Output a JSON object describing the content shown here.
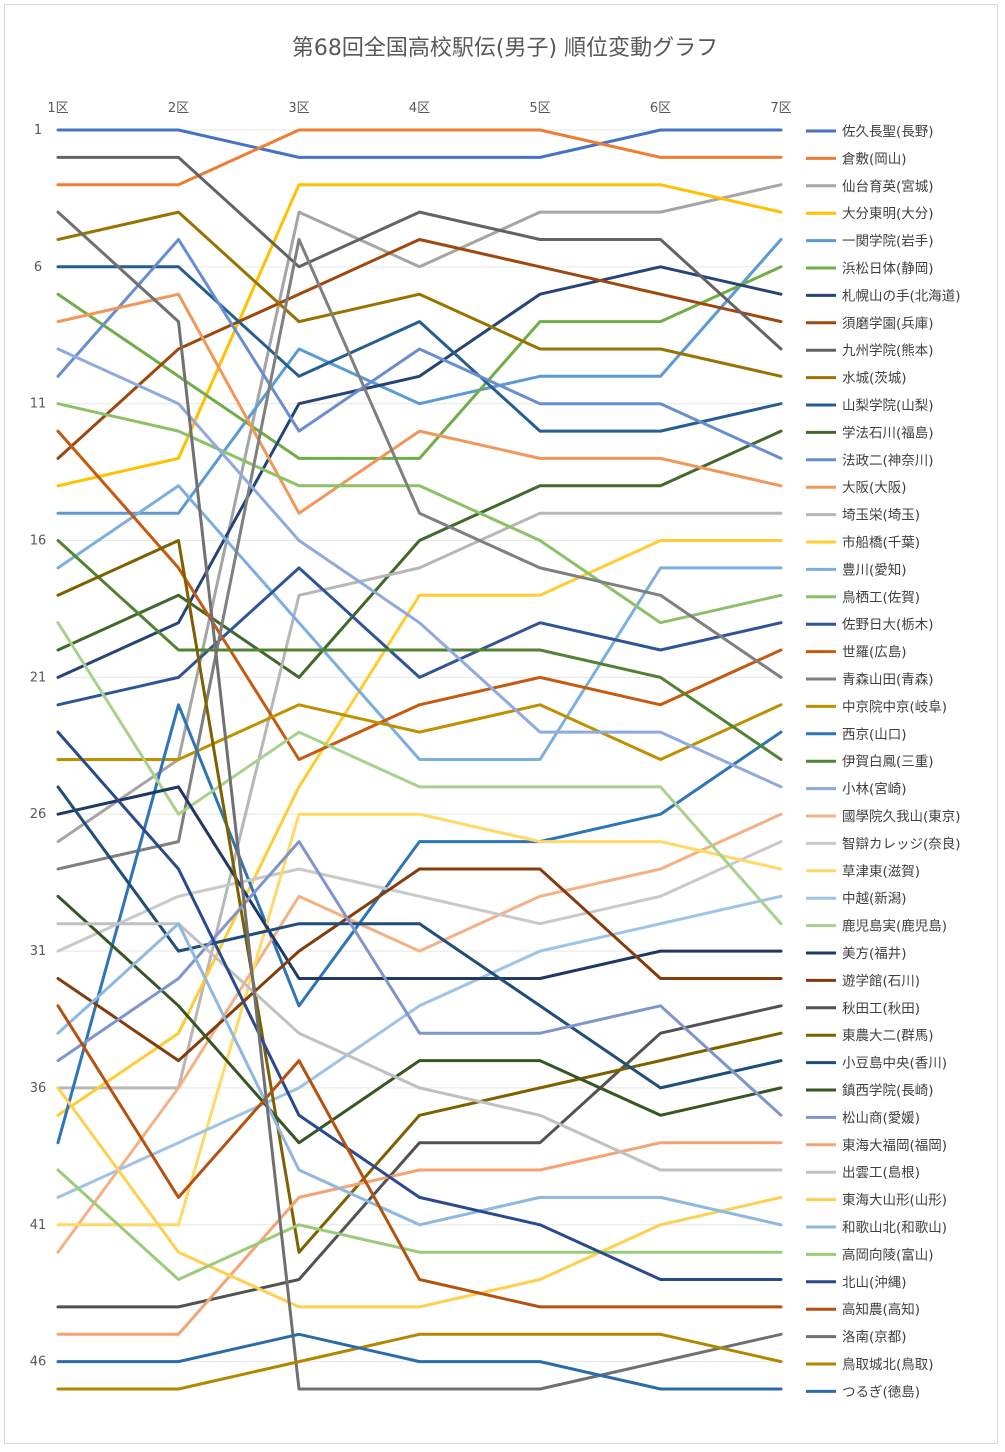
{
  "chart_data": {
    "type": "line",
    "title": "第68回全国高校駅伝(男子) 順位変動グラフ",
    "categories": [
      "1区",
      "2区",
      "3区",
      "4区",
      "5区",
      "6区",
      "7区"
    ],
    "y_ticks": [
      1,
      6,
      11,
      16,
      21,
      26,
      31,
      36,
      41,
      46
    ],
    "ylim": [
      1,
      47
    ],
    "y_reversed": true,
    "grid": true,
    "legend_position": "right",
    "series": [
      {
        "name": "佐久長聖(長野)",
        "color": "#4472C4",
        "values": [
          1,
          1,
          2,
          2,
          2,
          1,
          1
        ]
      },
      {
        "name": "倉敷(岡山)",
        "color": "#ED7D31",
        "values": [
          3,
          3,
          1,
          1,
          1,
          2,
          2
        ]
      },
      {
        "name": "仙台育英(宮城)",
        "color": "#A5A5A5",
        "values": [
          27,
          24,
          4,
          6,
          4,
          4,
          3
        ]
      },
      {
        "name": "大分東明(大分)",
        "color": "#FFC000",
        "values": [
          14,
          13,
          3,
          3,
          3,
          3,
          4
        ]
      },
      {
        "name": "一関学院(岩手)",
        "color": "#5B9BD5",
        "values": [
          15,
          15,
          9,
          11,
          10,
          10,
          5
        ]
      },
      {
        "name": "浜松日体(静岡)",
        "color": "#70AD47",
        "values": [
          7,
          10,
          13,
          13,
          8,
          8,
          6
        ]
      },
      {
        "name": "札幌山の手(北海道)",
        "color": "#264478",
        "values": [
          21,
          19,
          11,
          10,
          7,
          6,
          7
        ]
      },
      {
        "name": "須磨学園(兵庫)",
        "color": "#9E480E",
        "values": [
          13,
          9,
          7,
          5,
          6,
          7,
          8
        ]
      },
      {
        "name": "九州学院(熊本)",
        "color": "#636363",
        "values": [
          2,
          2,
          6,
          4,
          5,
          5,
          9
        ]
      },
      {
        "name": "水城(茨城)",
        "color": "#997300",
        "values": [
          5,
          4,
          8,
          7,
          9,
          9,
          10
        ]
      },
      {
        "name": "山梨学院(山梨)",
        "color": "#255E91",
        "values": [
          6,
          6,
          10,
          8,
          12,
          12,
          11
        ]
      },
      {
        "name": "学法石川(福島)",
        "color": "#43682B",
        "values": [
          20,
          18,
          21,
          16,
          14,
          14,
          12
        ]
      },
      {
        "name": "法政二(神奈川)",
        "color": "#698ED0",
        "values": [
          10,
          5,
          12,
          9,
          11,
          11,
          13
        ]
      },
      {
        "name": "大阪(大阪)",
        "color": "#F1975A",
        "values": [
          8,
          7,
          15,
          12,
          13,
          13,
          14
        ]
      },
      {
        "name": "埼玉栄(埼玉)",
        "color": "#B7B7B7",
        "values": [
          36,
          36,
          18,
          17,
          15,
          15,
          15
        ]
      },
      {
        "name": "市船橋(千葉)",
        "color": "#FFCD33",
        "values": [
          37,
          34,
          25,
          18,
          18,
          16,
          16
        ]
      },
      {
        "name": "豊川(愛知)",
        "color": "#7CAFDD",
        "values": [
          17,
          14,
          19,
          24,
          24,
          17,
          17
        ]
      },
      {
        "name": "鳥栖工(佐賀)",
        "color": "#8CC168",
        "values": [
          11,
          12,
          14,
          14,
          16,
          19,
          18
        ]
      },
      {
        "name": "佐野日大(栃木)",
        "color": "#2F5597",
        "values": [
          22,
          21,
          17,
          21,
          19,
          20,
          19
        ]
      },
      {
        "name": "世羅(広島)",
        "color": "#C55A11",
        "values": [
          12,
          17,
          24,
          22,
          21,
          22,
          20
        ]
      },
      {
        "name": "青森山田(青森)",
        "color": "#7F7F7F",
        "values": [
          28,
          27,
          5,
          15,
          17,
          18,
          21
        ]
      },
      {
        "name": "中京院中京(岐阜)",
        "color": "#BF9000",
        "values": [
          24,
          24,
          22,
          23,
          22,
          24,
          22
        ]
      },
      {
        "name": "西京(山口)",
        "color": "#2E75B6",
        "values": [
          38,
          22,
          33,
          27,
          27,
          26,
          23
        ]
      },
      {
        "name": "伊賀白鳳(三重)",
        "color": "#548235",
        "values": [
          16,
          20,
          20,
          20,
          20,
          21,
          24
        ]
      },
      {
        "name": "小林(宮崎)",
        "color": "#8FAADC",
        "values": [
          9,
          11,
          16,
          19,
          23,
          23,
          25
        ]
      },
      {
        "name": "國學院久我山(東京)",
        "color": "#F4B183",
        "values": [
          42,
          36,
          29,
          31,
          29,
          28,
          26
        ]
      },
      {
        "name": "智辯カレッジ(奈良)",
        "color": "#C9C9C9",
        "values": [
          31,
          29,
          28,
          29,
          30,
          29,
          27
        ]
      },
      {
        "name": "草津東(滋賀)",
        "color": "#FFD966",
        "values": [
          41,
          41,
          26,
          26,
          27,
          27,
          28
        ]
      },
      {
        "name": "中越(新潟)",
        "color": "#9DC3E6",
        "values": [
          40,
          38,
          36,
          33,
          31,
          30,
          29
        ]
      },
      {
        "name": "鹿児島実(鹿児島)",
        "color": "#A9D18E",
        "values": [
          19,
          26,
          23,
          25,
          25,
          25,
          30
        ]
      },
      {
        "name": "美方(福井)",
        "color": "#203864",
        "values": [
          26,
          25,
          32,
          32,
          32,
          31,
          31
        ]
      },
      {
        "name": "遊学館(石川)",
        "color": "#843C0C",
        "values": [
          32,
          35,
          31,
          28,
          28,
          32,
          32
        ]
      },
      {
        "name": "秋田工(秋田)",
        "color": "#525252",
        "values": [
          44,
          44,
          43,
          38,
          38,
          34,
          33
        ]
      },
      {
        "name": "東農大二(群馬)",
        "color": "#7F6000",
        "values": [
          18,
          16,
          42,
          37,
          36,
          35,
          34
        ]
      },
      {
        "name": "小豆島中央(香川)",
        "color": "#1F4E79",
        "values": [
          25,
          31,
          30,
          30,
          33,
          36,
          35
        ]
      },
      {
        "name": "鎮西学院(長崎)",
        "color": "#375623",
        "values": [
          29,
          33,
          38,
          35,
          35,
          37,
          36
        ]
      },
      {
        "name": "松山商(愛媛)",
        "color": "#7F96CC",
        "values": [
          35,
          32,
          27,
          34,
          34,
          33,
          37
        ]
      },
      {
        "name": "東海大福岡(福岡)",
        "color": "#F4A373",
        "values": [
          45,
          45,
          40,
          39,
          39,
          38,
          38
        ]
      },
      {
        "name": "出雲工(島根)",
        "color": "#C0C0C0",
        "values": [
          30,
          30,
          34,
          36,
          37,
          39,
          39
        ]
      },
      {
        "name": "東海大山形(山形)",
        "color": "#FFD050",
        "values": [
          36,
          42,
          44,
          44,
          43,
          41,
          40
        ]
      },
      {
        "name": "和歌山北(和歌山)",
        "color": "#8EB8E0",
        "values": [
          34,
          30,
          39,
          41,
          40,
          40,
          41
        ]
      },
      {
        "name": "高岡向陵(富山)",
        "color": "#9ACB78",
        "values": [
          39,
          43,
          41,
          42,
          42,
          42,
          42
        ]
      },
      {
        "name": "北山(沖縄)",
        "color": "#2A4A8E",
        "values": [
          23,
          28,
          37,
          40,
          41,
          43,
          43
        ]
      },
      {
        "name": "高知農(高知)",
        "color": "#B5520F",
        "values": [
          33,
          40,
          35,
          43,
          44,
          44,
          44
        ]
      },
      {
        "name": "洛南(京都)",
        "color": "#707070",
        "values": [
          4,
          8,
          47,
          47,
          47,
          46,
          45
        ]
      },
      {
        "name": "鳥取城北(鳥取)",
        "color": "#B38600",
        "values": [
          47,
          47,
          46,
          45,
          45,
          45,
          46
        ]
      },
      {
        "name": "つるぎ(徳島)",
        "color": "#2A6BA8",
        "values": [
          46,
          46,
          45,
          46,
          46,
          47,
          47
        ]
      }
    ]
  }
}
